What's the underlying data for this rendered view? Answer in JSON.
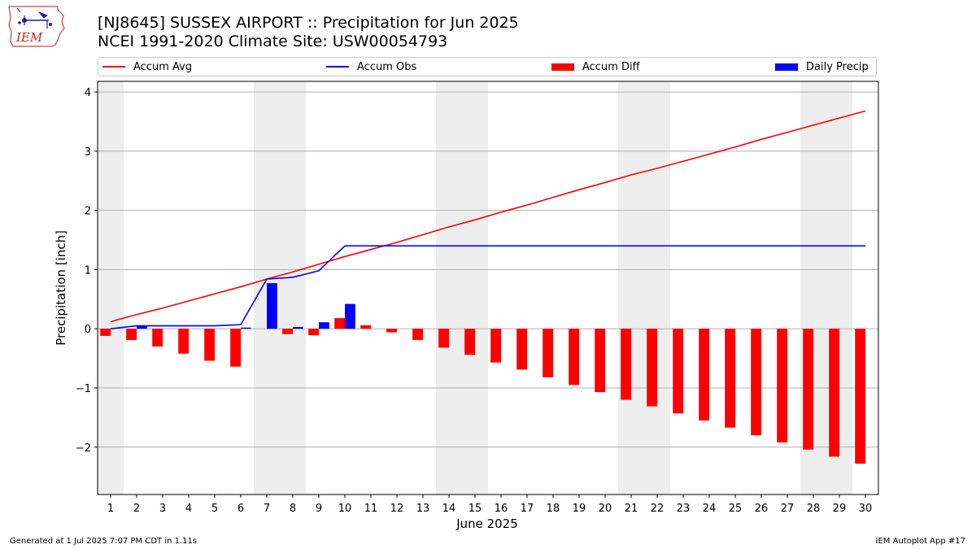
{
  "header": {
    "logo_text": "IEM",
    "title_line1": "[NJ8645] SUSSEX AIRPORT :: Precipitation for Jun 2025",
    "title_line2": "NCEI 1991-2020 Climate Site: USW00054793"
  },
  "legend": {
    "items": [
      {
        "label": "Accum Avg",
        "color": "#ff0000",
        "kind": "line"
      },
      {
        "label": "Accum Obs",
        "color": "#0000ff",
        "kind": "line"
      },
      {
        "label": "Accum Diff",
        "color": "#ff0000",
        "kind": "bar"
      },
      {
        "label": "Daily Precip",
        "color": "#0000ff",
        "kind": "bar"
      }
    ]
  },
  "footer": {
    "left": "Generated at 1 Jul 2025 7:07 PM CDT in 1.11s",
    "right": "IEM Autoplot App #17"
  },
  "chart_data": {
    "type": "bar",
    "xlabel": "June 2025",
    "ylabel": "Precipitation [inch]",
    "x": [
      1,
      2,
      3,
      4,
      5,
      6,
      7,
      8,
      9,
      10,
      11,
      12,
      13,
      14,
      15,
      16,
      17,
      18,
      19,
      20,
      21,
      22,
      23,
      24,
      25,
      26,
      27,
      28,
      29,
      30
    ],
    "xlim": [
      0.5,
      30.5
    ],
    "ylim": [
      -2.8,
      4.18
    ],
    "yticks": [
      -2,
      -1,
      0,
      1,
      2,
      3,
      4
    ],
    "grid": true,
    "weekend_shading": [
      [
        0.5,
        1.5
      ],
      [
        6.5,
        8.5
      ],
      [
        13.5,
        15.5
      ],
      [
        20.5,
        22.5
      ],
      [
        27.5,
        29.5
      ]
    ],
    "series": [
      {
        "name": "Accum Avg",
        "kind": "line",
        "color": "#ff0000",
        "values": [
          0.12,
          0.24,
          0.35,
          0.47,
          0.59,
          0.71,
          0.84,
          0.96,
          1.09,
          1.22,
          1.34,
          1.46,
          1.59,
          1.72,
          1.84,
          1.97,
          2.09,
          2.22,
          2.35,
          2.47,
          2.6,
          2.71,
          2.83,
          2.95,
          3.07,
          3.2,
          3.32,
          3.44,
          3.56,
          3.68
        ]
      },
      {
        "name": "Accum Obs",
        "kind": "line",
        "color": "#0000ff",
        "values": [
          0.0,
          0.05,
          0.05,
          0.05,
          0.05,
          0.07,
          0.84,
          0.87,
          0.98,
          1.4,
          1.4,
          1.4,
          1.4,
          1.4,
          1.4,
          1.4,
          1.4,
          1.4,
          1.4,
          1.4,
          1.4,
          1.4,
          1.4,
          1.4,
          1.4,
          1.4,
          1.4,
          1.4,
          1.4,
          1.4
        ]
      },
      {
        "name": "Accum Diff",
        "kind": "bar",
        "color": "#ff0000",
        "values": [
          -0.12,
          -0.19,
          -0.3,
          -0.42,
          -0.54,
          -0.64,
          0.0,
          -0.09,
          -0.11,
          0.18,
          0.06,
          -0.06,
          -0.19,
          -0.32,
          -0.44,
          -0.57,
          -0.69,
          -0.82,
          -0.95,
          -1.07,
          -1.2,
          -1.31,
          -1.43,
          -1.55,
          -1.67,
          -1.8,
          -1.92,
          -2.04,
          -2.16,
          -2.28
        ]
      },
      {
        "name": "Daily Precip",
        "kind": "bar",
        "color": "#0000ff",
        "values": [
          0.0,
          0.05,
          0.0,
          0.0,
          0.0,
          0.02,
          0.77,
          0.03,
          0.11,
          0.42,
          0,
          0,
          0,
          0,
          0,
          0,
          0,
          0,
          0,
          0,
          0,
          0,
          0,
          0,
          0,
          0,
          0,
          0,
          0,
          0
        ]
      }
    ]
  }
}
